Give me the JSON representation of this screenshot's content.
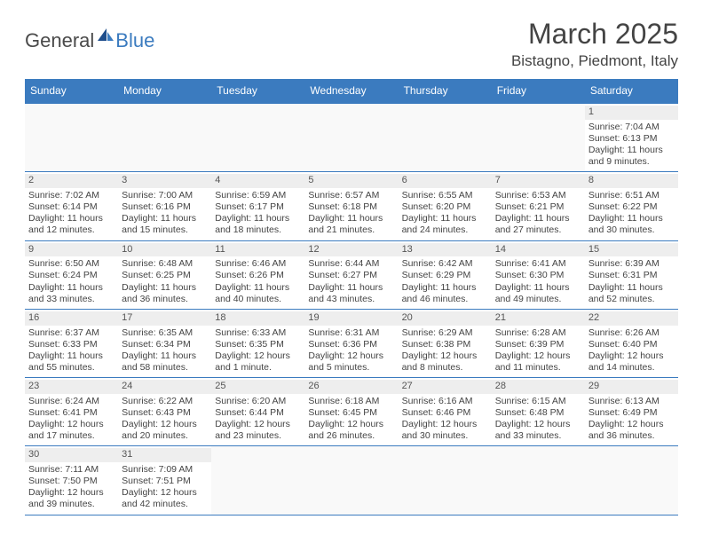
{
  "logo": {
    "text_dark": "General",
    "text_blue": "Blue"
  },
  "title": "March 2025",
  "location": "Bistagno, Piedmont, Italy",
  "colors": {
    "header_bg": "#3b7bbf",
    "header_text": "#ffffff",
    "day_num_bg": "#eeeeee",
    "row_border": "#3b7bbf",
    "text": "#444444",
    "logo_dark": "#4a4a4a",
    "logo_blue": "#3b7bbf"
  },
  "weekdays": [
    "Sunday",
    "Monday",
    "Tuesday",
    "Wednesday",
    "Thursday",
    "Friday",
    "Saturday"
  ],
  "weeks": [
    [
      null,
      null,
      null,
      null,
      null,
      null,
      {
        "n": "1",
        "sunrise": "Sunrise: 7:04 AM",
        "sunset": "Sunset: 6:13 PM",
        "dl1": "Daylight: 11 hours",
        "dl2": "and 9 minutes."
      }
    ],
    [
      {
        "n": "2",
        "sunrise": "Sunrise: 7:02 AM",
        "sunset": "Sunset: 6:14 PM",
        "dl1": "Daylight: 11 hours",
        "dl2": "and 12 minutes."
      },
      {
        "n": "3",
        "sunrise": "Sunrise: 7:00 AM",
        "sunset": "Sunset: 6:16 PM",
        "dl1": "Daylight: 11 hours",
        "dl2": "and 15 minutes."
      },
      {
        "n": "4",
        "sunrise": "Sunrise: 6:59 AM",
        "sunset": "Sunset: 6:17 PM",
        "dl1": "Daylight: 11 hours",
        "dl2": "and 18 minutes."
      },
      {
        "n": "5",
        "sunrise": "Sunrise: 6:57 AM",
        "sunset": "Sunset: 6:18 PM",
        "dl1": "Daylight: 11 hours",
        "dl2": "and 21 minutes."
      },
      {
        "n": "6",
        "sunrise": "Sunrise: 6:55 AM",
        "sunset": "Sunset: 6:20 PM",
        "dl1": "Daylight: 11 hours",
        "dl2": "and 24 minutes."
      },
      {
        "n": "7",
        "sunrise": "Sunrise: 6:53 AM",
        "sunset": "Sunset: 6:21 PM",
        "dl1": "Daylight: 11 hours",
        "dl2": "and 27 minutes."
      },
      {
        "n": "8",
        "sunrise": "Sunrise: 6:51 AM",
        "sunset": "Sunset: 6:22 PM",
        "dl1": "Daylight: 11 hours",
        "dl2": "and 30 minutes."
      }
    ],
    [
      {
        "n": "9",
        "sunrise": "Sunrise: 6:50 AM",
        "sunset": "Sunset: 6:24 PM",
        "dl1": "Daylight: 11 hours",
        "dl2": "and 33 minutes."
      },
      {
        "n": "10",
        "sunrise": "Sunrise: 6:48 AM",
        "sunset": "Sunset: 6:25 PM",
        "dl1": "Daylight: 11 hours",
        "dl2": "and 36 minutes."
      },
      {
        "n": "11",
        "sunrise": "Sunrise: 6:46 AM",
        "sunset": "Sunset: 6:26 PM",
        "dl1": "Daylight: 11 hours",
        "dl2": "and 40 minutes."
      },
      {
        "n": "12",
        "sunrise": "Sunrise: 6:44 AM",
        "sunset": "Sunset: 6:27 PM",
        "dl1": "Daylight: 11 hours",
        "dl2": "and 43 minutes."
      },
      {
        "n": "13",
        "sunrise": "Sunrise: 6:42 AM",
        "sunset": "Sunset: 6:29 PM",
        "dl1": "Daylight: 11 hours",
        "dl2": "and 46 minutes."
      },
      {
        "n": "14",
        "sunrise": "Sunrise: 6:41 AM",
        "sunset": "Sunset: 6:30 PM",
        "dl1": "Daylight: 11 hours",
        "dl2": "and 49 minutes."
      },
      {
        "n": "15",
        "sunrise": "Sunrise: 6:39 AM",
        "sunset": "Sunset: 6:31 PM",
        "dl1": "Daylight: 11 hours",
        "dl2": "and 52 minutes."
      }
    ],
    [
      {
        "n": "16",
        "sunrise": "Sunrise: 6:37 AM",
        "sunset": "Sunset: 6:33 PM",
        "dl1": "Daylight: 11 hours",
        "dl2": "and 55 minutes."
      },
      {
        "n": "17",
        "sunrise": "Sunrise: 6:35 AM",
        "sunset": "Sunset: 6:34 PM",
        "dl1": "Daylight: 11 hours",
        "dl2": "and 58 minutes."
      },
      {
        "n": "18",
        "sunrise": "Sunrise: 6:33 AM",
        "sunset": "Sunset: 6:35 PM",
        "dl1": "Daylight: 12 hours",
        "dl2": "and 1 minute."
      },
      {
        "n": "19",
        "sunrise": "Sunrise: 6:31 AM",
        "sunset": "Sunset: 6:36 PM",
        "dl1": "Daylight: 12 hours",
        "dl2": "and 5 minutes."
      },
      {
        "n": "20",
        "sunrise": "Sunrise: 6:29 AM",
        "sunset": "Sunset: 6:38 PM",
        "dl1": "Daylight: 12 hours",
        "dl2": "and 8 minutes."
      },
      {
        "n": "21",
        "sunrise": "Sunrise: 6:28 AM",
        "sunset": "Sunset: 6:39 PM",
        "dl1": "Daylight: 12 hours",
        "dl2": "and 11 minutes."
      },
      {
        "n": "22",
        "sunrise": "Sunrise: 6:26 AM",
        "sunset": "Sunset: 6:40 PM",
        "dl1": "Daylight: 12 hours",
        "dl2": "and 14 minutes."
      }
    ],
    [
      {
        "n": "23",
        "sunrise": "Sunrise: 6:24 AM",
        "sunset": "Sunset: 6:41 PM",
        "dl1": "Daylight: 12 hours",
        "dl2": "and 17 minutes."
      },
      {
        "n": "24",
        "sunrise": "Sunrise: 6:22 AM",
        "sunset": "Sunset: 6:43 PM",
        "dl1": "Daylight: 12 hours",
        "dl2": "and 20 minutes."
      },
      {
        "n": "25",
        "sunrise": "Sunrise: 6:20 AM",
        "sunset": "Sunset: 6:44 PM",
        "dl1": "Daylight: 12 hours",
        "dl2": "and 23 minutes."
      },
      {
        "n": "26",
        "sunrise": "Sunrise: 6:18 AM",
        "sunset": "Sunset: 6:45 PM",
        "dl1": "Daylight: 12 hours",
        "dl2": "and 26 minutes."
      },
      {
        "n": "27",
        "sunrise": "Sunrise: 6:16 AM",
        "sunset": "Sunset: 6:46 PM",
        "dl1": "Daylight: 12 hours",
        "dl2": "and 30 minutes."
      },
      {
        "n": "28",
        "sunrise": "Sunrise: 6:15 AM",
        "sunset": "Sunset: 6:48 PM",
        "dl1": "Daylight: 12 hours",
        "dl2": "and 33 minutes."
      },
      {
        "n": "29",
        "sunrise": "Sunrise: 6:13 AM",
        "sunset": "Sunset: 6:49 PM",
        "dl1": "Daylight: 12 hours",
        "dl2": "and 36 minutes."
      }
    ],
    [
      {
        "n": "30",
        "sunrise": "Sunrise: 7:11 AM",
        "sunset": "Sunset: 7:50 PM",
        "dl1": "Daylight: 12 hours",
        "dl2": "and 39 minutes."
      },
      {
        "n": "31",
        "sunrise": "Sunrise: 7:09 AM",
        "sunset": "Sunset: 7:51 PM",
        "dl1": "Daylight: 12 hours",
        "dl2": "and 42 minutes."
      },
      null,
      null,
      null,
      null,
      null
    ]
  ]
}
